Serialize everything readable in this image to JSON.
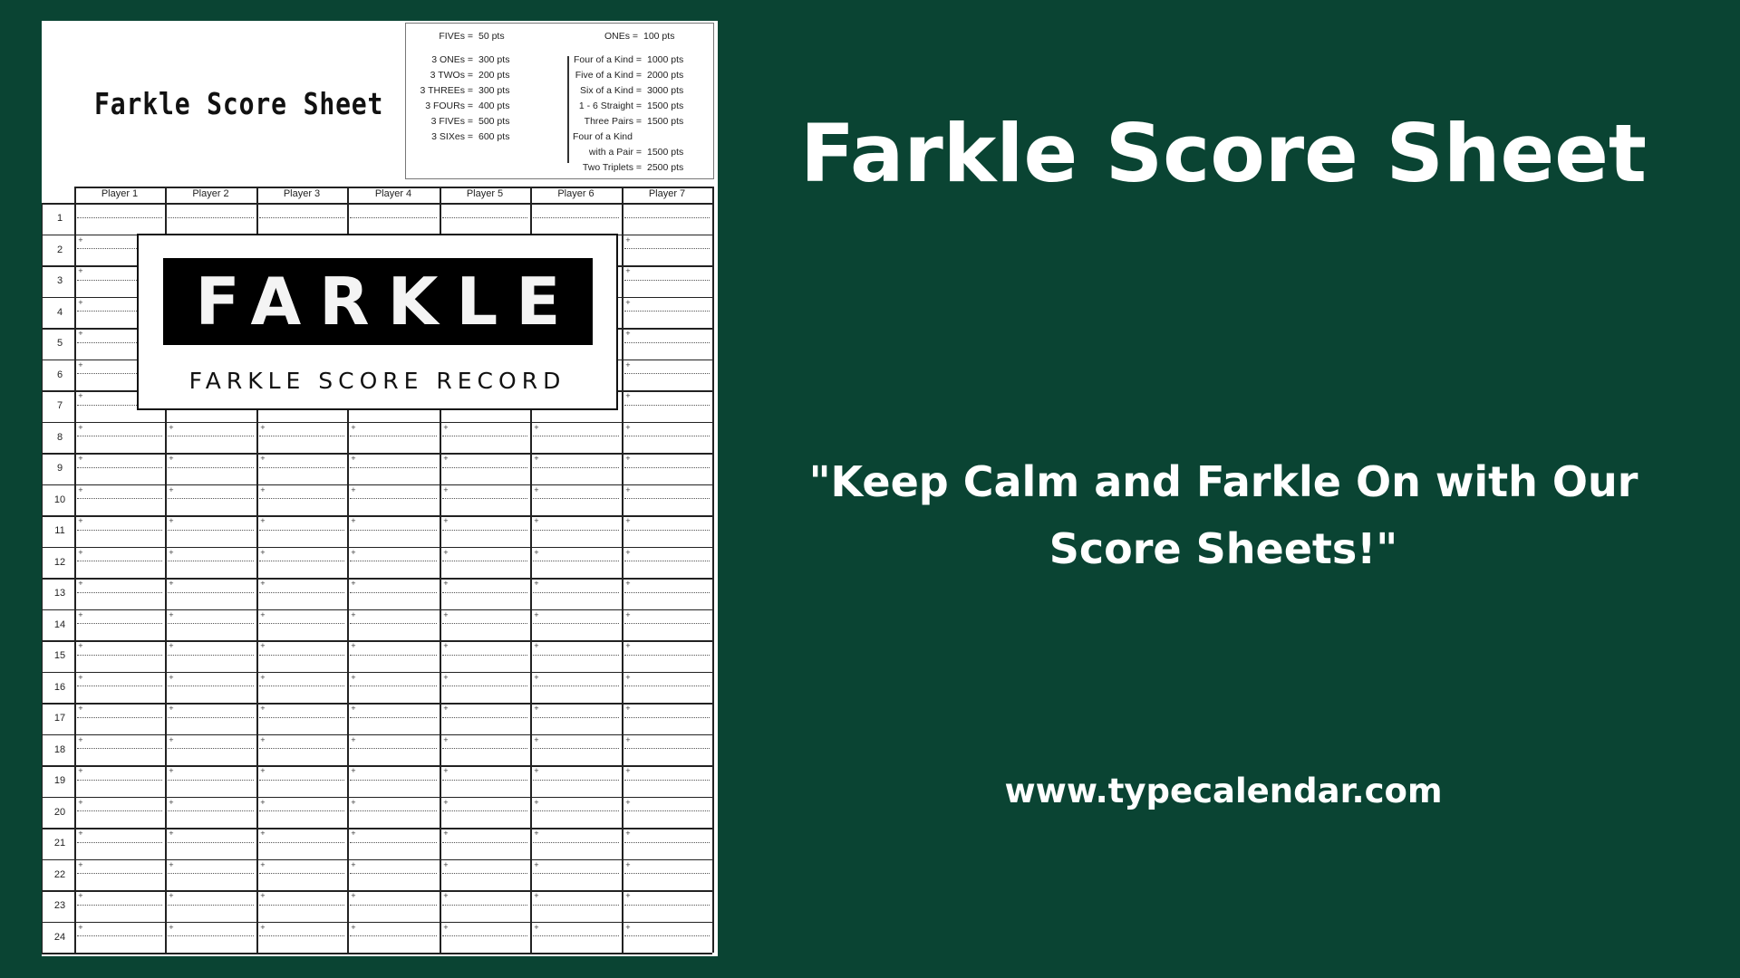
{
  "sheet": {
    "title": "Farkle Score Sheet",
    "scoring": {
      "top_left": {
        "label": "FIVEs =",
        "value": "50 pts"
      },
      "top_right": {
        "label": "ONEs =",
        "value": "100 pts"
      },
      "left": [
        {
          "label": "3 ONEs =",
          "value": "300 pts"
        },
        {
          "label": "3 TWOs =",
          "value": "200 pts"
        },
        {
          "label": "3 THREEs =",
          "value": "300 pts"
        },
        {
          "label": "3 FOURs =",
          "value": "400 pts"
        },
        {
          "label": "3 FIVEs =",
          "value": "500 pts"
        },
        {
          "label": "3 SIXes =",
          "value": "600 pts"
        }
      ],
      "right": [
        {
          "label": "Four of a Kind =",
          "value": "1000 pts"
        },
        {
          "label": "Five of a Kind =",
          "value": "2000 pts"
        },
        {
          "label": "Six of a Kind =",
          "value": "3000 pts"
        },
        {
          "label": "1 - 6 Straight =",
          "value": "1500 pts"
        },
        {
          "label": "Three Pairs =",
          "value": "1500 pts"
        },
        {
          "label": "Four of a Kind",
          "value": ""
        },
        {
          "label": "with a Pair =",
          "value": "1500 pts"
        },
        {
          "label": "Two Triplets =",
          "value": "2500 pts"
        }
      ]
    },
    "players": [
      "Player 1",
      "Player 2",
      "Player 3",
      "Player 4",
      "Player 5",
      "Player 6",
      "Player 7"
    ],
    "rows": [
      "1",
      "2",
      "3",
      "4",
      "5",
      "6",
      "7",
      "8",
      "9",
      "10",
      "11",
      "12",
      "13",
      "14",
      "15",
      "16",
      "17",
      "18",
      "19",
      "20",
      "21",
      "22",
      "23",
      "24"
    ],
    "logo_text": "FARKLE",
    "logo_subtitle": "FARKLE SCORE RECORD"
  },
  "banner": {
    "title": "Farkle Score Sheet",
    "tagline": "\"Keep Calm and Farkle On with Our Score Sheets!\"",
    "url": "www.typecalendar.com"
  },
  "colors": {
    "background": "#0a4433",
    "text": "#ffffff"
  }
}
